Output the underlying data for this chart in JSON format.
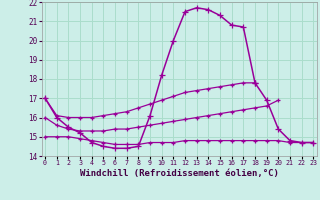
{
  "xlabel": "Windchill (Refroidissement éolien,°C)",
  "background_color": "#cceee8",
  "grid_color": "#aaddcc",
  "line_color": "#990099",
  "x_hours": [
    0,
    1,
    2,
    3,
    4,
    5,
    6,
    7,
    8,
    9,
    10,
    11,
    12,
    13,
    14,
    15,
    16,
    17,
    18,
    19,
    20,
    21,
    22,
    23
  ],
  "curve_main": [
    17.0,
    16.0,
    15.5,
    15.2,
    14.7,
    14.5,
    14.4,
    14.4,
    14.5,
    16.1,
    18.2,
    20.0,
    21.5,
    21.7,
    21.6,
    21.3,
    20.8,
    20.7,
    17.8,
    null,
    null,
    null,
    null,
    null
  ],
  "curve_upper": [
    17.0,
    16.1,
    16.0,
    16.0,
    16.0,
    16.1,
    16.2,
    16.3,
    16.5,
    16.7,
    16.9,
    17.1,
    17.3,
    17.4,
    17.5,
    17.6,
    17.7,
    17.8,
    17.8,
    null,
    null,
    null,
    null,
    null
  ],
  "curve_lower_top": [
    16.0,
    15.6,
    15.4,
    15.3,
    15.3,
    15.3,
    15.4,
    15.4,
    15.5,
    15.6,
    15.7,
    15.8,
    15.9,
    16.0,
    16.1,
    16.2,
    16.3,
    16.4,
    16.5,
    16.6,
    16.9,
    null,
    null,
    null
  ],
  "curve_lower_bot": [
    15.0,
    15.0,
    15.0,
    14.9,
    14.8,
    14.7,
    14.6,
    14.6,
    14.6,
    14.7,
    14.7,
    14.7,
    14.8,
    14.8,
    14.8,
    14.8,
    14.8,
    14.8,
    14.8,
    14.8,
    14.8,
    14.7,
    14.7,
    14.7
  ],
  "curve_extra": [
    null,
    null,
    null,
    null,
    null,
    null,
    null,
    null,
    null,
    null,
    null,
    null,
    null,
    null,
    null,
    null,
    null,
    null,
    17.8,
    16.9,
    15.4,
    14.8,
    14.7,
    14.7
  ],
  "ylim": [
    14.0,
    22.0
  ],
  "yticks": [
    14,
    15,
    16,
    17,
    18,
    19,
    20,
    21,
    22
  ],
  "xlim": [
    0,
    23
  ]
}
